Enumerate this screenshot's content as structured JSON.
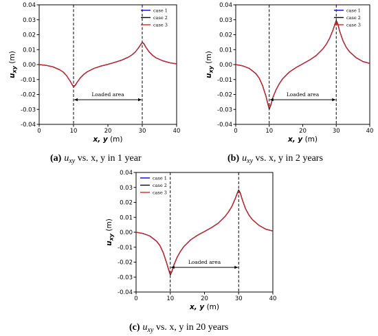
{
  "chart_data": [
    {
      "type": "line",
      "panel": "a",
      "caption_label": "(a)",
      "caption_rest": "u",
      "caption_sub": "xy",
      "caption_tail": " vs. x, y in 1 year",
      "xlabel": "x, y",
      "xlabel_unit": " (m)",
      "ylabel": "u",
      "ylabel_sub": "xy",
      "ylabel_unit": " (m)",
      "xlim": [
        0,
        40
      ],
      "ylim": [
        -0.04,
        0.04
      ],
      "xticks": [
        0,
        10,
        20,
        30,
        40
      ],
      "yticks": [
        -0.04,
        -0.03,
        -0.02,
        -0.01,
        0.0,
        0.01,
        0.02,
        0.03,
        0.04
      ],
      "ytick_labels": [
        "-0.04",
        "-0.03",
        "-0.02",
        "-0.01",
        "0.00",
        "0.01",
        "0.02",
        "0.03",
        "0.04"
      ],
      "vlines": [
        10,
        30
      ],
      "annotation": {
        "text": "Loaded area",
        "y": -0.0235,
        "x_from": 10,
        "x_to": 30
      },
      "legend": "top-right",
      "series": [
        {
          "name": "case 1",
          "color": "#0000ff",
          "x": [
            0,
            2,
            4,
            6,
            7,
            8,
            9,
            9.5,
            10,
            10.5,
            11,
            12,
            13,
            14,
            16,
            18,
            20,
            22,
            24,
            26,
            27,
            28,
            29,
            29.5,
            30,
            30.5,
            31,
            32,
            33,
            34,
            36,
            38,
            40
          ],
          "y": [
            0.0,
            -0.0005,
            -0.0015,
            -0.0035,
            -0.005,
            -0.0075,
            -0.011,
            -0.013,
            -0.0148,
            -0.0138,
            -0.012,
            -0.0088,
            -0.0065,
            -0.0048,
            -0.0025,
            -0.001,
            0.0002,
            0.0015,
            0.003,
            0.005,
            0.0065,
            0.0085,
            0.0115,
            0.0132,
            0.0148,
            0.0138,
            0.0118,
            0.0085,
            0.0062,
            0.0045,
            0.0025,
            0.0012,
            0.0005
          ]
        },
        {
          "name": "case 2",
          "color": "#000000",
          "x": [
            0,
            2,
            4,
            6,
            7,
            8,
            9,
            9.5,
            10,
            10.5,
            11,
            12,
            13,
            14,
            16,
            18,
            20,
            22,
            24,
            26,
            27,
            28,
            29,
            29.5,
            30,
            30.5,
            31,
            32,
            33,
            34,
            36,
            38,
            40
          ],
          "y": [
            0.0,
            -0.0005,
            -0.0015,
            -0.0035,
            -0.005,
            -0.0075,
            -0.011,
            -0.013,
            -0.0149,
            -0.0139,
            -0.012,
            -0.0088,
            -0.0065,
            -0.0048,
            -0.0025,
            -0.001,
            0.0002,
            0.0015,
            0.003,
            0.005,
            0.0065,
            0.0085,
            0.0115,
            0.0133,
            0.0149,
            0.0139,
            0.0118,
            0.0085,
            0.0062,
            0.0045,
            0.0025,
            0.0012,
            0.0005
          ]
        },
        {
          "name": "case 3",
          "color": "#d62728",
          "x": [
            0,
            2,
            4,
            6,
            7,
            8,
            9,
            9.5,
            10,
            10.5,
            11,
            12,
            13,
            14,
            16,
            18,
            20,
            22,
            24,
            26,
            27,
            28,
            29,
            29.5,
            30,
            30.5,
            31,
            32,
            33,
            34,
            36,
            38,
            40
          ],
          "y": [
            0.0,
            -0.0005,
            -0.0015,
            -0.0035,
            -0.005,
            -0.0075,
            -0.011,
            -0.013,
            -0.0147,
            -0.0137,
            -0.012,
            -0.0088,
            -0.0065,
            -0.0048,
            -0.0025,
            -0.001,
            0.0002,
            0.0015,
            0.003,
            0.005,
            0.0065,
            0.0085,
            0.0115,
            0.0131,
            0.0147,
            0.0137,
            0.0118,
            0.0085,
            0.0062,
            0.0045,
            0.0025,
            0.0012,
            0.0005
          ]
        }
      ]
    },
    {
      "type": "line",
      "panel": "b",
      "caption_label": "(b)",
      "caption_rest": "u",
      "caption_sub": "xy",
      "caption_tail": " vs. x, y in 2 years",
      "xlabel": "x, y",
      "xlabel_unit": " (m)",
      "ylabel": "u",
      "ylabel_sub": "xy",
      "ylabel_unit": " (m)",
      "xlim": [
        0,
        40
      ],
      "ylim": [
        -0.04,
        0.04
      ],
      "xticks": [
        0,
        10,
        20,
        30,
        40
      ],
      "yticks": [
        -0.04,
        -0.03,
        -0.02,
        -0.01,
        0.0,
        0.01,
        0.02,
        0.03,
        0.04
      ],
      "ytick_labels": [
        "-0.04",
        "-0.03",
        "-0.02",
        "-0.01",
        "0.00",
        "0.01",
        "0.02",
        "0.03",
        "0.04"
      ],
      "vlines": [
        10,
        30
      ],
      "annotation": {
        "text": "Loaded area",
        "y": -0.0235,
        "x_from": 10,
        "x_to": 30
      },
      "legend": "top-right",
      "series": [
        {
          "name": "case 1",
          "color": "#0000ff",
          "x": [
            0,
            2,
            4,
            6,
            7,
            8,
            9,
            9.5,
            10,
            10.5,
            11,
            12,
            13,
            14,
            16,
            18,
            20,
            22,
            24,
            26,
            27,
            28,
            29,
            29.5,
            30,
            30.5,
            31,
            32,
            33,
            34,
            36,
            38,
            40
          ],
          "y": [
            0.0,
            -0.0008,
            -0.0025,
            -0.006,
            -0.009,
            -0.014,
            -0.021,
            -0.0255,
            -0.0295,
            -0.0268,
            -0.0225,
            -0.017,
            -0.0128,
            -0.0095,
            -0.005,
            -0.002,
            0.0005,
            0.003,
            0.006,
            0.0105,
            0.0135,
            0.0175,
            0.023,
            0.0262,
            0.0292,
            0.0268,
            0.0225,
            0.016,
            0.0115,
            0.0085,
            0.0045,
            0.002,
            0.0008
          ]
        },
        {
          "name": "case 2",
          "color": "#000000",
          "x": [
            0,
            2,
            4,
            6,
            7,
            8,
            9,
            9.5,
            10,
            10.5,
            11,
            12,
            13,
            14,
            16,
            18,
            20,
            22,
            24,
            26,
            27,
            28,
            29,
            29.5,
            30,
            30.5,
            31,
            32,
            33,
            34,
            36,
            38,
            40
          ],
          "y": [
            0.0,
            -0.0008,
            -0.0025,
            -0.006,
            -0.009,
            -0.014,
            -0.021,
            -0.0255,
            -0.0297,
            -0.027,
            -0.0225,
            -0.017,
            -0.0128,
            -0.0095,
            -0.005,
            -0.002,
            0.0005,
            0.003,
            0.006,
            0.0105,
            0.0135,
            0.0175,
            0.023,
            0.0263,
            0.0294,
            0.027,
            0.0225,
            0.016,
            0.0115,
            0.0085,
            0.0045,
            0.002,
            0.0008
          ]
        },
        {
          "name": "case 3",
          "color": "#d62728",
          "x": [
            0,
            2,
            4,
            6,
            7,
            8,
            9,
            9.5,
            10,
            10.5,
            11,
            12,
            13,
            14,
            16,
            18,
            20,
            22,
            24,
            26,
            27,
            28,
            29,
            29.5,
            30,
            30.5,
            31,
            32,
            33,
            34,
            36,
            38,
            40
          ],
          "y": [
            0.0,
            -0.0008,
            -0.0025,
            -0.006,
            -0.009,
            -0.014,
            -0.021,
            -0.0253,
            -0.029,
            -0.0265,
            -0.0225,
            -0.017,
            -0.0128,
            -0.0095,
            -0.005,
            -0.002,
            0.0005,
            0.003,
            0.006,
            0.0105,
            0.0135,
            0.0175,
            0.023,
            0.026,
            0.0288,
            0.0265,
            0.0225,
            0.016,
            0.0115,
            0.0085,
            0.0045,
            0.002,
            0.0008
          ]
        }
      ]
    },
    {
      "type": "line",
      "panel": "c",
      "caption_label": "(c)",
      "caption_rest": "u",
      "caption_sub": "xy",
      "caption_tail": " vs. x, y in 20 years",
      "xlabel": "x, y",
      "xlabel_unit": " (m)",
      "ylabel": "u",
      "ylabel_sub": "xy",
      "ylabel_unit": " (m)",
      "xlim": [
        0,
        40
      ],
      "ylim": [
        -0.04,
        0.04
      ],
      "xticks": [
        0,
        10,
        20,
        30,
        40
      ],
      "yticks": [
        -0.04,
        -0.03,
        -0.02,
        -0.01,
        0.0,
        0.01,
        0.02,
        0.03,
        0.04
      ],
      "ytick_labels": [
        "-0.04",
        "-0.03",
        "-0.02",
        "-0.01",
        "0.00",
        "0.01",
        "0.02",
        "0.03",
        "0.04"
      ],
      "vlines": [
        10,
        30
      ],
      "annotation": {
        "text": "Loaded area",
        "y": -0.0235,
        "x_from": 10,
        "x_to": 30
      },
      "legend": "top-left",
      "series": [
        {
          "name": "case 1",
          "color": "#0000ff",
          "x": [
            0,
            2,
            4,
            6,
            7,
            8,
            9,
            9.5,
            10,
            10.5,
            11,
            12,
            13,
            14,
            16,
            18,
            20,
            22,
            24,
            26,
            27,
            28,
            29,
            29.5,
            30,
            30.5,
            31,
            32,
            33,
            34,
            36,
            38,
            40
          ],
          "y": [
            0.0,
            -0.0008,
            -0.0025,
            -0.006,
            -0.009,
            -0.014,
            -0.021,
            -0.0248,
            -0.0283,
            -0.026,
            -0.0222,
            -0.0168,
            -0.0127,
            -0.0095,
            -0.005,
            -0.002,
            0.0005,
            0.003,
            0.006,
            0.0105,
            0.0135,
            0.0172,
            0.0225,
            0.0255,
            0.0281,
            0.026,
            0.0222,
            0.0158,
            0.0115,
            0.0085,
            0.0045,
            0.002,
            0.0008
          ]
        },
        {
          "name": "case 2",
          "color": "#000000",
          "x": [
            0,
            2,
            4,
            6,
            7,
            8,
            9,
            9.5,
            10,
            10.5,
            11,
            12,
            13,
            14,
            16,
            18,
            20,
            22,
            24,
            26,
            27,
            28,
            29,
            29.5,
            30,
            30.5,
            31,
            32,
            33,
            34,
            36,
            38,
            40
          ],
          "y": [
            0.0,
            -0.0008,
            -0.0025,
            -0.006,
            -0.009,
            -0.014,
            -0.021,
            -0.0249,
            -0.0285,
            -0.0262,
            -0.0222,
            -0.0168,
            -0.0127,
            -0.0095,
            -0.005,
            -0.002,
            0.0005,
            0.003,
            0.006,
            0.0105,
            0.0135,
            0.0172,
            0.0225,
            0.0256,
            0.0283,
            0.0262,
            0.0222,
            0.0158,
            0.0115,
            0.0085,
            0.0045,
            0.002,
            0.0008
          ]
        },
        {
          "name": "case 3",
          "color": "#d62728",
          "x": [
            0,
            2,
            4,
            6,
            7,
            8,
            9,
            9.5,
            10,
            10.5,
            11,
            12,
            13,
            14,
            16,
            18,
            20,
            22,
            24,
            26,
            27,
            28,
            29,
            29.5,
            30,
            30.5,
            31,
            32,
            33,
            34,
            36,
            38,
            40
          ],
          "y": [
            0.0,
            -0.0008,
            -0.0025,
            -0.006,
            -0.009,
            -0.014,
            -0.021,
            -0.0246,
            -0.0279,
            -0.0258,
            -0.0222,
            -0.0168,
            -0.0127,
            -0.0095,
            -0.005,
            -0.002,
            0.0005,
            0.003,
            0.006,
            0.0105,
            0.0135,
            0.0172,
            0.0225,
            0.0253,
            0.0277,
            0.0258,
            0.0222,
            0.0158,
            0.0115,
            0.0085,
            0.0045,
            0.002,
            0.0008
          ]
        }
      ]
    }
  ]
}
